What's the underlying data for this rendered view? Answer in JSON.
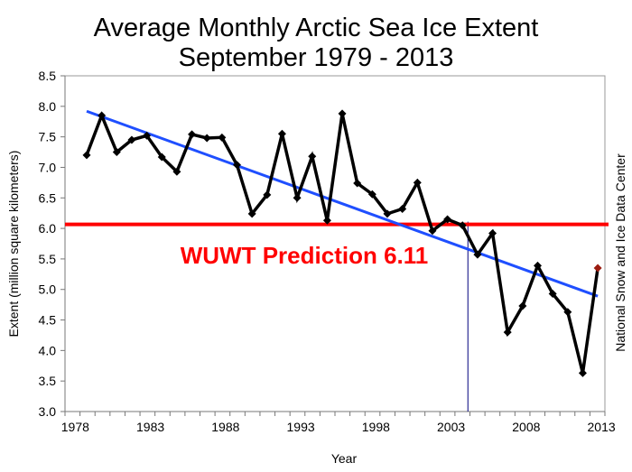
{
  "chart_data": {
    "type": "line",
    "title_line1": "Average Monthly Arctic Sea Ice Extent",
    "title_line2": "September 1979 - 2013",
    "xlabel": "Year",
    "ylabel": "Extent (million square kilometers)",
    "source": "National Snow and Ice Data Center",
    "annotation": "WUWT Prediction 6.11",
    "prediction_value": 6.11,
    "marker_year": 2004,
    "ylim": [
      3.0,
      8.5
    ],
    "xlim": [
      1978,
      2014
    ],
    "yticks": [
      "3.0",
      "3.5",
      "4.0",
      "4.5",
      "5.0",
      "5.5",
      "6.0",
      "6.5",
      "7.0",
      "7.5",
      "8.0",
      "8.5"
    ],
    "xticks": [
      "1978",
      "1983",
      "1988",
      "1993",
      "1998",
      "2003",
      "2008",
      "2013"
    ],
    "grid": false,
    "x": [
      1979,
      1980,
      1981,
      1982,
      1983,
      1984,
      1985,
      1986,
      1987,
      1988,
      1989,
      1990,
      1991,
      1992,
      1993,
      1994,
      1995,
      1996,
      1997,
      1998,
      1999,
      2000,
      2001,
      2002,
      2003,
      2004,
      2005,
      2006,
      2007,
      2008,
      2009,
      2010,
      2011,
      2012,
      2013
    ],
    "values": [
      7.2,
      7.85,
      7.25,
      7.45,
      7.52,
      7.17,
      6.93,
      7.54,
      7.48,
      7.49,
      7.04,
      6.24,
      6.55,
      7.55,
      6.5,
      7.18,
      6.13,
      7.88,
      6.74,
      6.56,
      6.24,
      6.32,
      6.75,
      5.96,
      6.15,
      6.05,
      5.57,
      5.92,
      4.3,
      4.73,
      5.39,
      4.93,
      4.63,
      3.63,
      5.35
    ],
    "trend": {
      "start": [
        1979,
        7.92
      ],
      "end": [
        2013,
        4.89
      ]
    },
    "colors": {
      "series": "#000000",
      "last_point": "#9b1c10",
      "trend": "#1f4fff",
      "prediction": "#ff0000",
      "marker_line": "#00007f"
    }
  }
}
